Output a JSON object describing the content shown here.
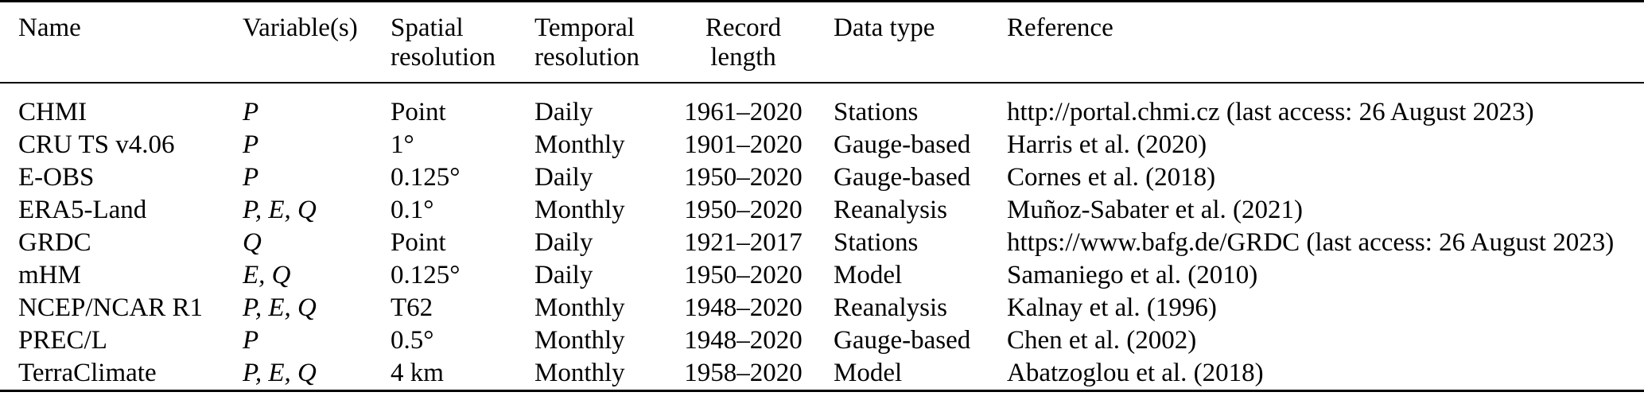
{
  "table": {
    "columns": [
      {
        "key": "name",
        "label": "Name"
      },
      {
        "key": "variables",
        "label": "Variable(s)"
      },
      {
        "key": "spatial",
        "label": "Spatial resolution"
      },
      {
        "key": "temporal",
        "label": "Temporal resolution"
      },
      {
        "key": "record",
        "label": "Record length"
      },
      {
        "key": "datatype",
        "label": "Data type"
      },
      {
        "key": "reference",
        "label": "Reference"
      }
    ],
    "rows": [
      {
        "name": "CHMI",
        "variables": "P",
        "spatial": "Point",
        "temporal": "Daily",
        "record": "1961–2020",
        "datatype": "Stations",
        "reference": "http://portal.chmi.cz (last access: 26 August 2023)"
      },
      {
        "name": "CRU TS v4.06",
        "variables": "P",
        "spatial": "1°",
        "temporal": "Monthly",
        "record": "1901–2020",
        "datatype": "Gauge-based",
        "reference": "Harris et al. (2020)"
      },
      {
        "name": "E-OBS",
        "variables": "P",
        "spatial": "0.125°",
        "temporal": "Daily",
        "record": "1950–2020",
        "datatype": "Gauge-based",
        "reference": "Cornes et al. (2018)"
      },
      {
        "name": "ERA5-Land",
        "variables": "P, E, Q",
        "spatial": "0.1°",
        "temporal": "Monthly",
        "record": "1950–2020",
        "datatype": "Reanalysis",
        "reference": "Muñoz-Sabater et al. (2021)"
      },
      {
        "name": "GRDC",
        "variables": "Q",
        "spatial": "Point",
        "temporal": "Daily",
        "record": "1921–2017",
        "datatype": "Stations",
        "reference": "https://www.bafg.de/GRDC (last access: 26 August 2023)"
      },
      {
        "name": "mHM",
        "variables": "E, Q",
        "spatial": "0.125°",
        "temporal": "Daily",
        "record": "1950–2020",
        "datatype": "Model",
        "reference": "Samaniego et al. (2010)"
      },
      {
        "name": "NCEP/NCAR R1",
        "variables": "P, E, Q",
        "spatial": "T62",
        "temporal": "Monthly",
        "record": "1948–2020",
        "datatype": "Reanalysis",
        "reference": "Kalnay et al. (1996)"
      },
      {
        "name": "PREC/L",
        "variables": "P",
        "spatial": "0.5°",
        "temporal": "Monthly",
        "record": "1948–2020",
        "datatype": "Gauge-based",
        "reference": "Chen et al. (2002)"
      },
      {
        "name": "TerraClimate",
        "variables": "P, E, Q",
        "spatial": "4 km",
        "temporal": "Monthly",
        "record": "1958–2020",
        "datatype": "Model",
        "reference": "Abatzoglou et al. (2018)"
      }
    ]
  }
}
